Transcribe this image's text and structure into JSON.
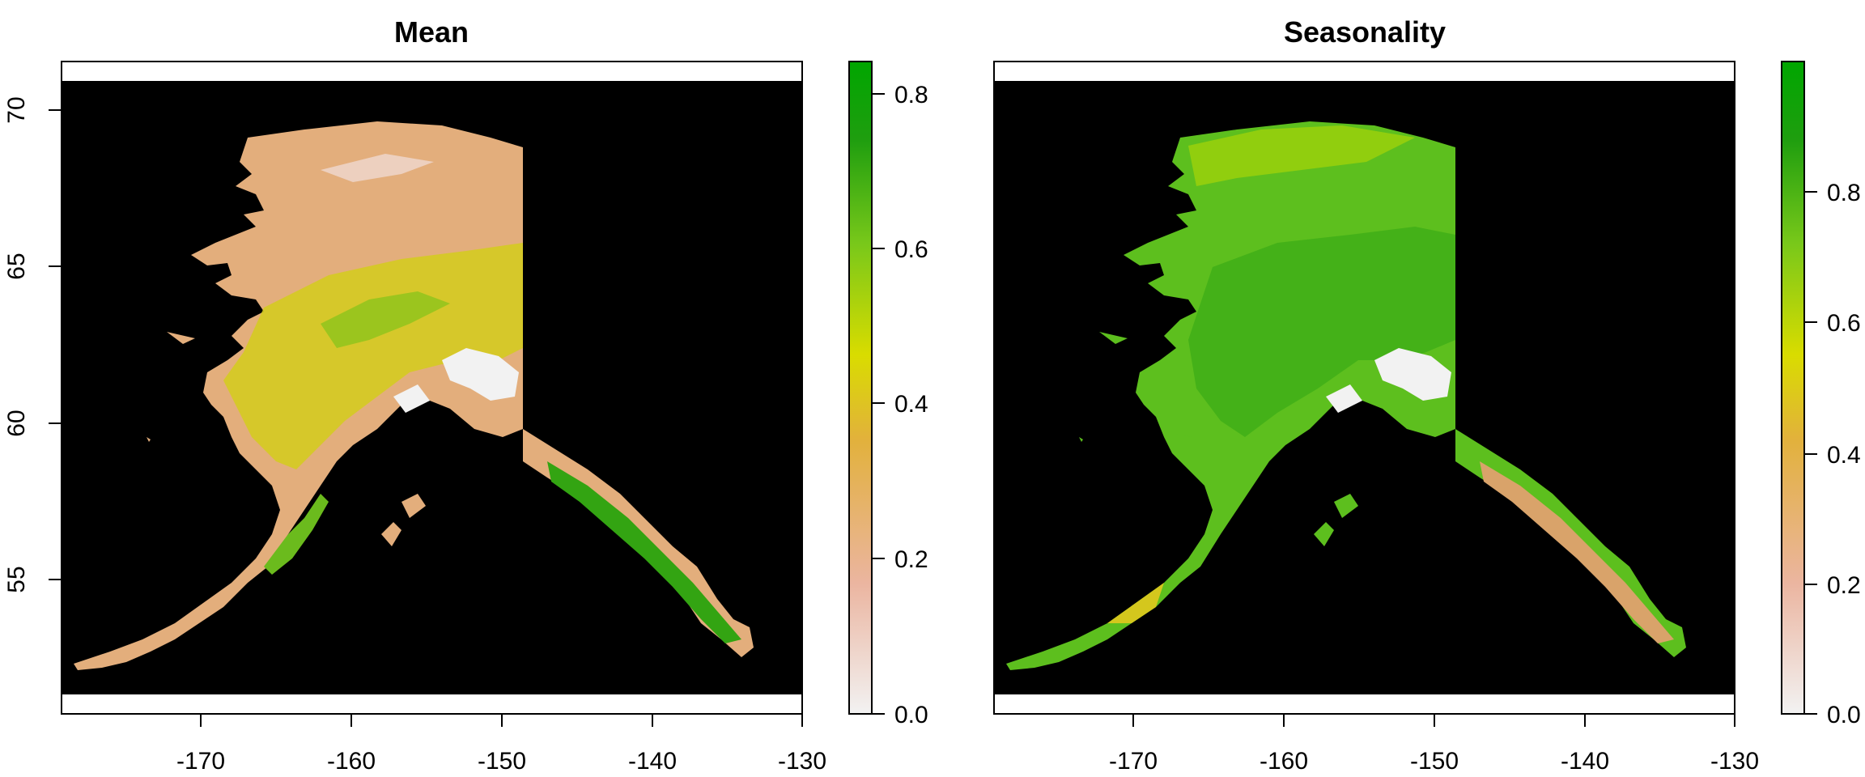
{
  "panels": [
    {
      "title": "Mean",
      "x_ticks": [
        "-170",
        "-160",
        "-150",
        "-140",
        "-130"
      ],
      "y_ticks": [
        "70",
        "65",
        "60",
        "55"
      ],
      "colorbar": {
        "ticks": [
          "0.0",
          "0.2",
          "0.4",
          "0.6",
          "0.8"
        ],
        "range": [
          0,
          0.84
        ]
      },
      "land_base_color": "#e3ae7c"
    },
    {
      "title": "Seasonality",
      "x_ticks": [
        "-170",
        "-160",
        "-150",
        "-140",
        "-130"
      ],
      "y_ticks": [],
      "colorbar": {
        "ticks": [
          "0.0",
          "0.2",
          "0.4",
          "0.6",
          "0.8"
        ],
        "range": [
          0,
          1.0
        ]
      },
      "land_base_color": "#5dbf1e"
    }
  ],
  "colors": {
    "ocean": "#000000",
    "colorbar_stops": [
      "#f2f2f2",
      "#ebb5a0",
      "#e2b13c",
      "#d9dc00",
      "#79c81a",
      "#1f9e0f",
      "#00a600"
    ],
    "glacier": "#f2f2f2",
    "forest": "#2f9f10"
  }
}
